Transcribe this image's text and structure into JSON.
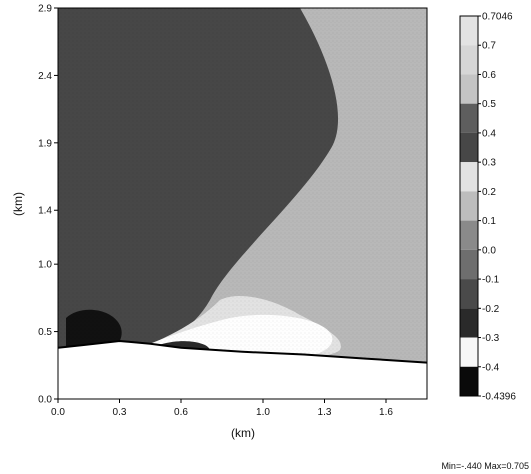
{
  "chart_data": {
    "type": "heatmap",
    "xlabel": "(km)",
    "ylabel": "(km)",
    "xlim": [
      0.0,
      1.8
    ],
    "ylim": [
      0.0,
      2.9
    ],
    "x_ticks": [
      "0.0",
      "0.3",
      "0.6",
      "1.0",
      "1.3",
      "1.6"
    ],
    "y_ticks": [
      "0.0",
      "0.5",
      "1.0",
      "1.4",
      "1.9",
      "2.4",
      "2.9"
    ],
    "colorbar": {
      "levels": [
        "-0.4396",
        "-0.4",
        "-0.3",
        "-0.2",
        "-0.1",
        "0.0",
        "0.1",
        "0.2",
        "0.3",
        "0.4",
        "0.5",
        "0.6",
        "0.7",
        "0.7046"
      ],
      "colors": [
        "#0a0a0a",
        "#f7f7f7",
        "#2a2a2a",
        "#4a4a4a",
        "#6e6e6e",
        "#8a8a8a",
        "#bdbdbd",
        "#e2e2e2",
        "#474747",
        "#5e5e5e",
        "#c4c4c4",
        "#d6d6d6",
        "#e3e3e3"
      ]
    },
    "field_regions": {
      "background_value_range": "0.1 to 0.2",
      "upper_left_region_value": "0.3 to 0.4",
      "transition_band_value": "0.0 to 0.1",
      "light_lobe_value": "-0.4 to -0.3",
      "dark_blob_near_ground_value": "-0.4396 to -0.4"
    },
    "terrain_line": [
      {
        "x": 0.0,
        "y": 0.38
      },
      {
        "x": 0.12,
        "y": 0.4
      },
      {
        "x": 0.3,
        "y": 0.43
      },
      {
        "x": 0.45,
        "y": 0.41
      },
      {
        "x": 0.6,
        "y": 0.38
      },
      {
        "x": 0.9,
        "y": 0.35
      },
      {
        "x": 1.2,
        "y": 0.33
      },
      {
        "x": 1.5,
        "y": 0.3
      },
      {
        "x": 1.8,
        "y": 0.27
      }
    ],
    "summary": {
      "min": "-.440",
      "max": "0.705"
    },
    "footer_text": "Min=-.440 Max=0.705"
  }
}
